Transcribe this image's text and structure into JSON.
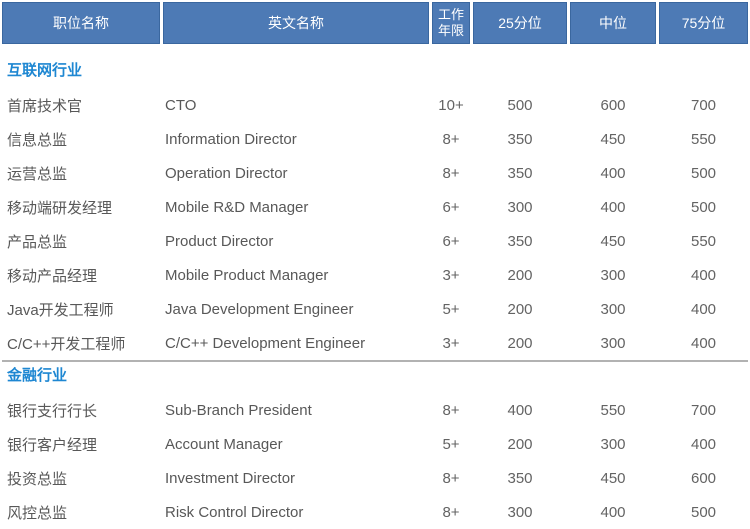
{
  "colors": {
    "header_bg": "#4d7ab5",
    "header_border": "#3a679f",
    "header_text": "#ffffff",
    "section_title": "#1e87d2",
    "body_text": "#585858",
    "value_text": "#636363",
    "divider": "#b2b2b2",
    "page_bg": "#ffffff"
  },
  "chart_data": {
    "type": "table",
    "columns": [
      "职位名称",
      "英文名称",
      "工作年限",
      "25分位",
      "中位",
      "75分位"
    ],
    "sections": [
      {
        "title": "互联网行业",
        "rows": [
          {
            "position": "首席技术官",
            "english": "CTO",
            "years": "10+",
            "p25": "500",
            "median": "600",
            "p75": "700"
          },
          {
            "position": "信息总监",
            "english": "Information Director",
            "years": "8+",
            "p25": "350",
            "median": "450",
            "p75": "550"
          },
          {
            "position": "运营总监",
            "english": "Operation Director",
            "years": "8+",
            "p25": "350",
            "median": "400",
            "p75": "500"
          },
          {
            "position": "移动端研发经理",
            "english": "Mobile R&D Manager",
            "years": "6+",
            "p25": "300",
            "median": "400",
            "p75": "500"
          },
          {
            "position": "产品总监",
            "english": "Product Director",
            "years": "6+",
            "p25": "350",
            "median": "450",
            "p75": "550"
          },
          {
            "position": "移动产品经理",
            "english": "Mobile Product Manager",
            "years": "3+",
            "p25": "200",
            "median": "300",
            "p75": "400"
          },
          {
            "position": "Java开发工程师",
            "english": "Java Development Engineer",
            "years": "5+",
            "p25": "200",
            "median": "300",
            "p75": "400"
          },
          {
            "position": "C/C++开发工程师",
            "english": "C/C++ Development Engineer",
            "years": "3+",
            "p25": "200",
            "median": "300",
            "p75": "400"
          }
        ]
      },
      {
        "title": "金融行业",
        "rows": [
          {
            "position": "银行支行行长",
            "english": "Sub-Branch President",
            "years": "8+",
            "p25": "400",
            "median": "550",
            "p75": "700"
          },
          {
            "position": "银行客户经理",
            "english": "Account Manager",
            "years": "5+",
            "p25": "200",
            "median": "300",
            "p75": "400"
          },
          {
            "position": "投资总监",
            "english": "Investment Director",
            "years": "8+",
            "p25": "350",
            "median": "450",
            "p75": "600"
          },
          {
            "position": "风控总监",
            "english": "Risk Control Director",
            "years": "8+",
            "p25": "300",
            "median": "400",
            "p75": "500"
          }
        ]
      }
    ]
  }
}
